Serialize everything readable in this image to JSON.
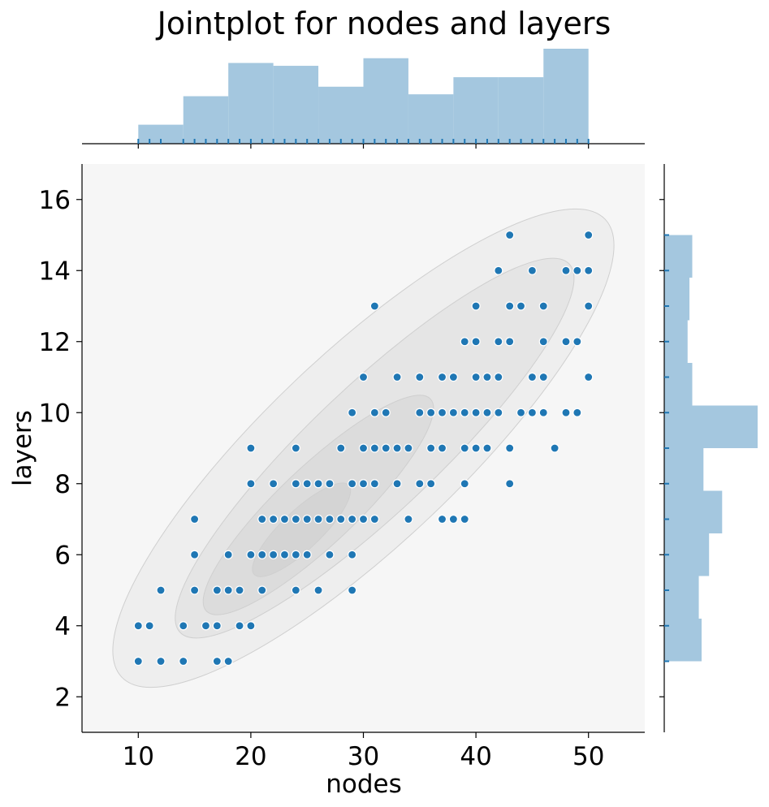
{
  "chart_data": {
    "type": "scatter",
    "title": "Jointplot for nodes and layers",
    "xlabel": "nodes",
    "ylabel": "layers",
    "xlim": [
      5,
      55
    ],
    "ylim": [
      1,
      17
    ],
    "x_ticks": [
      "10",
      "20",
      "30",
      "40",
      "50"
    ],
    "y_ticks": [
      "2",
      "4",
      "6",
      "8",
      "10",
      "12",
      "14",
      "16"
    ],
    "points": [
      [
        10,
        3
      ],
      [
        10,
        4
      ],
      [
        11,
        4
      ],
      [
        12,
        3
      ],
      [
        12,
        5
      ],
      [
        14,
        3
      ],
      [
        14,
        4
      ],
      [
        15,
        5
      ],
      [
        15,
        6
      ],
      [
        15,
        7
      ],
      [
        16,
        4
      ],
      [
        17,
        3
      ],
      [
        17,
        4
      ],
      [
        17,
        5
      ],
      [
        18,
        3
      ],
      [
        18,
        5
      ],
      [
        18,
        6
      ],
      [
        19,
        4
      ],
      [
        19,
        5
      ],
      [
        20,
        4
      ],
      [
        20,
        6
      ],
      [
        20,
        8
      ],
      [
        20,
        9
      ],
      [
        21,
        5
      ],
      [
        21,
        6
      ],
      [
        21,
        7
      ],
      [
        22,
        6
      ],
      [
        22,
        7
      ],
      [
        22,
        8
      ],
      [
        23,
        6
      ],
      [
        23,
        7
      ],
      [
        24,
        5
      ],
      [
        24,
        6
      ],
      [
        24,
        7
      ],
      [
        24,
        8
      ],
      [
        24,
        9
      ],
      [
        25,
        6
      ],
      [
        25,
        7
      ],
      [
        25,
        8
      ],
      [
        26,
        5
      ],
      [
        26,
        7
      ],
      [
        26,
        8
      ],
      [
        27,
        6
      ],
      [
        27,
        7
      ],
      [
        27,
        8
      ],
      [
        28,
        7
      ],
      [
        28,
        9
      ],
      [
        29,
        5
      ],
      [
        29,
        6
      ],
      [
        29,
        7
      ],
      [
        29,
        8
      ],
      [
        29,
        10
      ],
      [
        30,
        7
      ],
      [
        30,
        8
      ],
      [
        30,
        9
      ],
      [
        30,
        11
      ],
      [
        31,
        7
      ],
      [
        31,
        8
      ],
      [
        31,
        9
      ],
      [
        31,
        10
      ],
      [
        31,
        13
      ],
      [
        32,
        9
      ],
      [
        32,
        10
      ],
      [
        33,
        8
      ],
      [
        33,
        9
      ],
      [
        33,
        11
      ],
      [
        34,
        7
      ],
      [
        34,
        9
      ],
      [
        35,
        8
      ],
      [
        35,
        10
      ],
      [
        35,
        11
      ],
      [
        36,
        8
      ],
      [
        36,
        9
      ],
      [
        36,
        10
      ],
      [
        37,
        7
      ],
      [
        37,
        9
      ],
      [
        37,
        10
      ],
      [
        37,
        11
      ],
      [
        38,
        7
      ],
      [
        38,
        10
      ],
      [
        38,
        11
      ],
      [
        39,
        7
      ],
      [
        39,
        8
      ],
      [
        39,
        9
      ],
      [
        39,
        10
      ],
      [
        39,
        12
      ],
      [
        40,
        9
      ],
      [
        40,
        10
      ],
      [
        40,
        11
      ],
      [
        40,
        12
      ],
      [
        40,
        13
      ],
      [
        41,
        9
      ],
      [
        41,
        10
      ],
      [
        41,
        11
      ],
      [
        42,
        10
      ],
      [
        42,
        11
      ],
      [
        42,
        12
      ],
      [
        42,
        14
      ],
      [
        43,
        8
      ],
      [
        43,
        9
      ],
      [
        43,
        12
      ],
      [
        43,
        13
      ],
      [
        43,
        15
      ],
      [
        44,
        10
      ],
      [
        44,
        13
      ],
      [
        45,
        10
      ],
      [
        45,
        11
      ],
      [
        45,
        14
      ],
      [
        46,
        10
      ],
      [
        46,
        11
      ],
      [
        46,
        12
      ],
      [
        46,
        13
      ],
      [
        47,
        9
      ],
      [
        48,
        10
      ],
      [
        48,
        12
      ],
      [
        48,
        14
      ],
      [
        49,
        10
      ],
      [
        49,
        12
      ],
      [
        49,
        14
      ],
      [
        50,
        11
      ],
      [
        50,
        13
      ],
      [
        50,
        14
      ],
      [
        50,
        15
      ]
    ],
    "marginal_x": {
      "type": "histogram",
      "bin_edges": [
        10,
        14,
        18,
        22,
        26,
        30,
        34,
        38,
        42,
        46,
        50
      ],
      "values": [
        0.2,
        0.5,
        0.85,
        0.82,
        0.6,
        0.9,
        0.52,
        0.7,
        0.7,
        1.0
      ]
    },
    "marginal_y": {
      "type": "histogram",
      "bin_edges": [
        3,
        4.2,
        5.4,
        6.6,
        7.8,
        9.0,
        10.2,
        11.4,
        12.6,
        13.8,
        15
      ],
      "values": [
        0.4,
        0.37,
        0.48,
        0.62,
        0.42,
        1.0,
        0.3,
        0.25,
        0.27,
        0.3
      ]
    },
    "kde_contours": true,
    "grid": false,
    "colors": {
      "point": "#1f77b4",
      "point_edge": "#ffffff",
      "panel_bg": "#f6f6f6",
      "hist_fill": "#a4c7df",
      "rug": "#1f77b4"
    }
  }
}
